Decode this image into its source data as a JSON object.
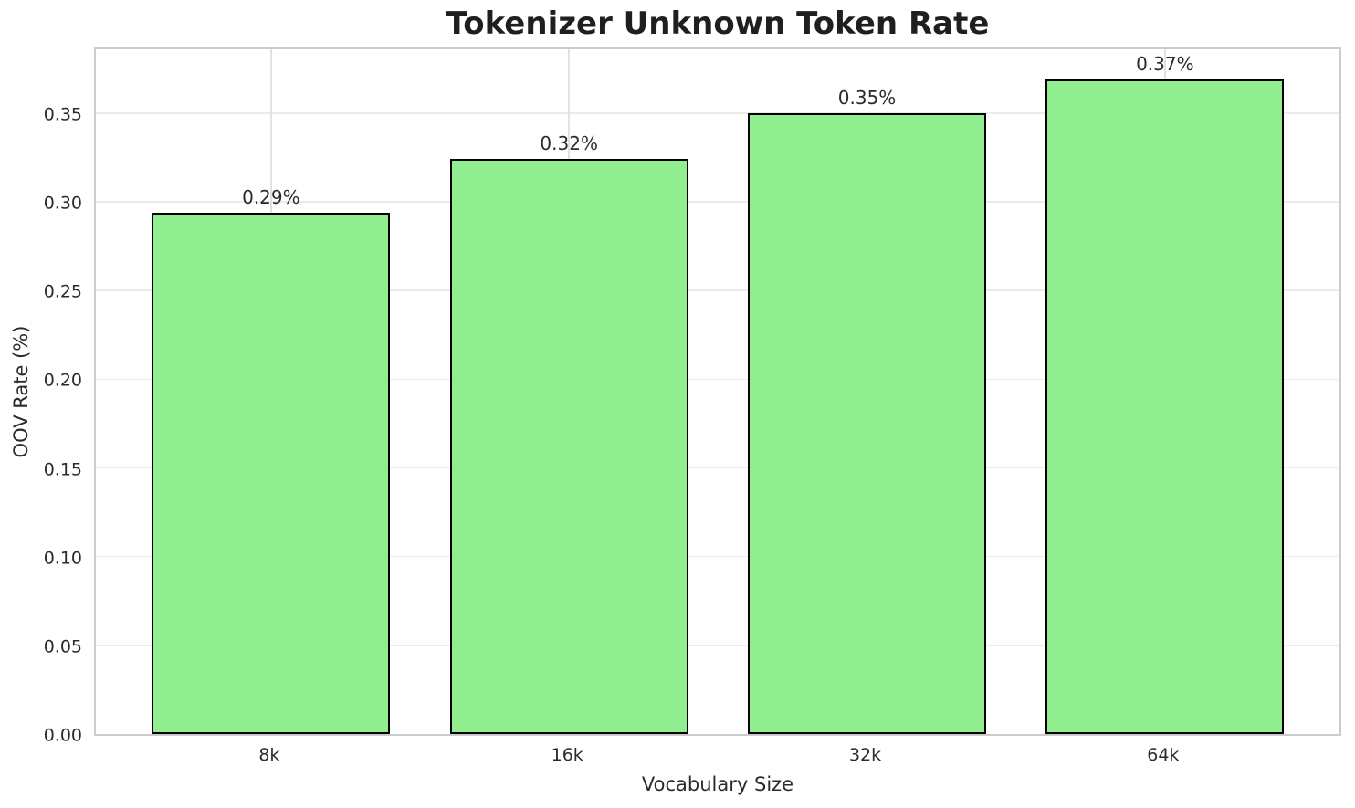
{
  "chart_data": {
    "type": "bar",
    "title": "Tokenizer Unknown Token Rate",
    "xlabel": "Vocabulary Size",
    "ylabel": "OOV Rate (%)",
    "categories": [
      "8k",
      "16k",
      "32k",
      "64k"
    ],
    "values": [
      0.294,
      0.324,
      0.35,
      0.369
    ],
    "bar_labels": [
      "0.29%",
      "0.32%",
      "0.35%",
      "0.37%"
    ],
    "yticks": [
      0.0,
      0.05,
      0.1,
      0.15,
      0.2,
      0.25,
      0.3,
      0.35
    ],
    "ylim": [
      0,
      0.388
    ],
    "grid": true,
    "legend": null,
    "colors": {
      "bar_fill": "#90EE90",
      "bar_edge": "#000000",
      "grid_h": "#ebebeb",
      "grid_v": "#e2e2e2",
      "spine": "#cccccc",
      "text": "#2b2b2b",
      "title_text": "#1f1f1f",
      "background": "#ffffff"
    }
  }
}
